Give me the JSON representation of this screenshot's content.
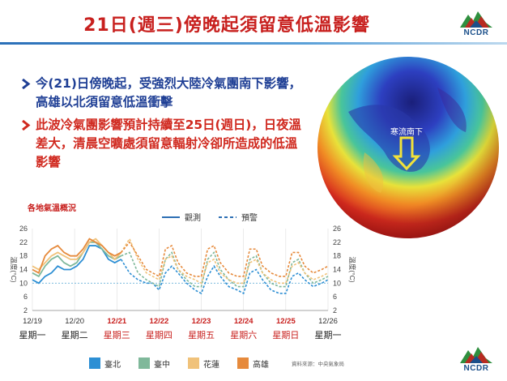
{
  "header": {
    "title": "21日(週三)傍晚起須留意低溫影響",
    "logo_text": "NCDR"
  },
  "bullets": [
    {
      "text": "今(21)日傍晚起，受強烈大陸冷氣團南下影響，高雄以北須留意低溫衝擊",
      "color": "#1f3f95"
    },
    {
      "text": "此波冷氣團影響預計持續至25日(週日)，日夜溫差大，清晨空曠處須留意輻射冷卻所造成的低溫影響",
      "color": "#d0291f"
    }
  ],
  "globe": {
    "label": "寒流南下"
  },
  "footer": {
    "source": "資料來源：中央氣象局",
    "logo_text": "NCDR"
  },
  "chart_data": {
    "type": "line",
    "title": "各地氣溫概況",
    "ylabel": "溫度(°C)",
    "ylabel_right": "溫度(°C)",
    "ylim": [
      2,
      26
    ],
    "yticks": [
      2,
      6,
      10,
      14,
      18,
      22,
      26
    ],
    "xlim": [
      0,
      7
    ],
    "date_ticks": [
      "12/19",
      "12/20",
      "12/21",
      "12/22",
      "12/23",
      "12/24",
      "12/25",
      "12/26"
    ],
    "weekday_ticks": [
      "星期一",
      "星期二",
      "星期三",
      "星期四",
      "星期五",
      "星期六",
      "星期日",
      "星期一"
    ],
    "highlight_ticks": [
      2,
      3,
      4,
      5,
      6
    ],
    "reference_line": 10,
    "observation_end": 2.1,
    "line_style_legend": [
      {
        "label": "觀測",
        "style": "solid"
      },
      {
        "label": "預警",
        "style": "dashed"
      }
    ],
    "series": [
      {
        "name": "臺北",
        "color": "#2d8fd4",
        "x": [
          0,
          0.15,
          0.3,
          0.45,
          0.6,
          0.75,
          0.9,
          1.05,
          1.2,
          1.35,
          1.5,
          1.65,
          1.8,
          1.95,
          2.1
        ],
        "y": [
          11,
          10,
          12,
          13,
          15,
          14,
          14,
          15,
          17,
          21,
          21,
          20,
          17,
          16,
          17
        ],
        "fx": [
          2.1,
          2.3,
          2.5,
          2.7,
          2.85,
          3.0,
          3.15,
          3.3,
          3.45,
          3.65,
          3.85,
          4.0,
          4.15,
          4.3,
          4.45,
          4.65,
          4.85,
          5.0,
          5.15,
          5.3,
          5.45,
          5.65,
          5.85,
          6.0,
          6.15,
          6.3,
          6.45,
          6.65,
          6.85,
          7.0
        ],
        "fy": [
          17,
          13,
          11,
          10,
          10,
          8,
          13,
          15,
          13,
          10,
          8,
          7,
          12,
          15,
          12,
          9,
          8,
          7,
          13,
          14,
          11,
          8,
          7,
          7,
          12,
          13,
          11,
          9,
          10,
          11
        ]
      },
      {
        "name": "臺中",
        "color": "#7fb89a",
        "x": [
          0,
          0.15,
          0.3,
          0.45,
          0.6,
          0.75,
          0.9,
          1.05,
          1.2,
          1.35,
          1.5,
          1.65,
          1.8,
          1.95,
          2.1
        ],
        "y": [
          13,
          12,
          15,
          17,
          18,
          16,
          15,
          16,
          19,
          22,
          22,
          20,
          18,
          17,
          18
        ],
        "fx": [
          2.1,
          2.3,
          2.5,
          2.7,
          2.85,
          3.0,
          3.15,
          3.3,
          3.45,
          3.65,
          3.85,
          4.0,
          4.15,
          4.3,
          4.45,
          4.65,
          4.85,
          5.0,
          5.15,
          5.3,
          5.45,
          5.65,
          5.85,
          6.0,
          6.15,
          6.3,
          6.45,
          6.65,
          6.85,
          7.0
        ],
        "fy": [
          18,
          19,
          13,
          11,
          10,
          9,
          17,
          19,
          14,
          11,
          9,
          9,
          17,
          19,
          14,
          11,
          9,
          9,
          17,
          18,
          13,
          10,
          9,
          9,
          16,
          17,
          13,
          10,
          11,
          12
        ]
      },
      {
        "name": "花蓮",
        "color": "#f0c27a",
        "x": [
          0,
          0.15,
          0.3,
          0.45,
          0.6,
          0.75,
          0.9,
          1.05,
          1.2,
          1.35,
          1.5,
          1.65,
          1.8,
          1.95,
          2.1
        ],
        "y": [
          15,
          14,
          16,
          18,
          19,
          18,
          17,
          17,
          19,
          22,
          23,
          21,
          19,
          17,
          19
        ],
        "fx": [
          2.1,
          2.3,
          2.5,
          2.7,
          2.85,
          3.0,
          3.15,
          3.3,
          3.45,
          3.65,
          3.85,
          4.0,
          4.15,
          4.3,
          4.45,
          4.65,
          4.85,
          5.0,
          5.15,
          5.3,
          5.45,
          5.65,
          5.85,
          6.0,
          6.15,
          6.3,
          6.45,
          6.65,
          6.85,
          7.0
        ],
        "fy": [
          19,
          23,
          17,
          13,
          12,
          11,
          17,
          18,
          14,
          12,
          11,
          10,
          16,
          17,
          13,
          11,
          10,
          10,
          16,
          17,
          13,
          11,
          10,
          10,
          15,
          16,
          13,
          11,
          12,
          13
        ]
      },
      {
        "name": "高雄",
        "color": "#e68a3c",
        "x": [
          0,
          0.15,
          0.3,
          0.45,
          0.6,
          0.75,
          0.9,
          1.05,
          1.2,
          1.35,
          1.5,
          1.65,
          1.8,
          1.95,
          2.1
        ],
        "y": [
          14,
          13,
          18,
          20,
          21,
          19,
          18,
          18,
          20,
          23,
          22,
          21,
          19,
          18,
          19
        ],
        "fx": [
          2.1,
          2.3,
          2.5,
          2.7,
          2.85,
          3.0,
          3.15,
          3.3,
          3.45,
          3.65,
          3.85,
          4.0,
          4.15,
          4.3,
          4.45,
          4.65,
          4.85,
          5.0,
          5.15,
          5.3,
          5.45,
          5.65,
          5.85,
          6.0,
          6.15,
          6.3,
          6.45,
          6.65,
          6.85,
          7.0
        ],
        "fy": [
          19,
          22,
          18,
          14,
          13,
          12,
          20,
          21,
          16,
          13,
          12,
          12,
          20,
          21,
          16,
          13,
          12,
          12,
          20,
          20,
          15,
          13,
          12,
          12,
          19,
          19,
          15,
          13,
          14,
          15
        ]
      }
    ]
  }
}
